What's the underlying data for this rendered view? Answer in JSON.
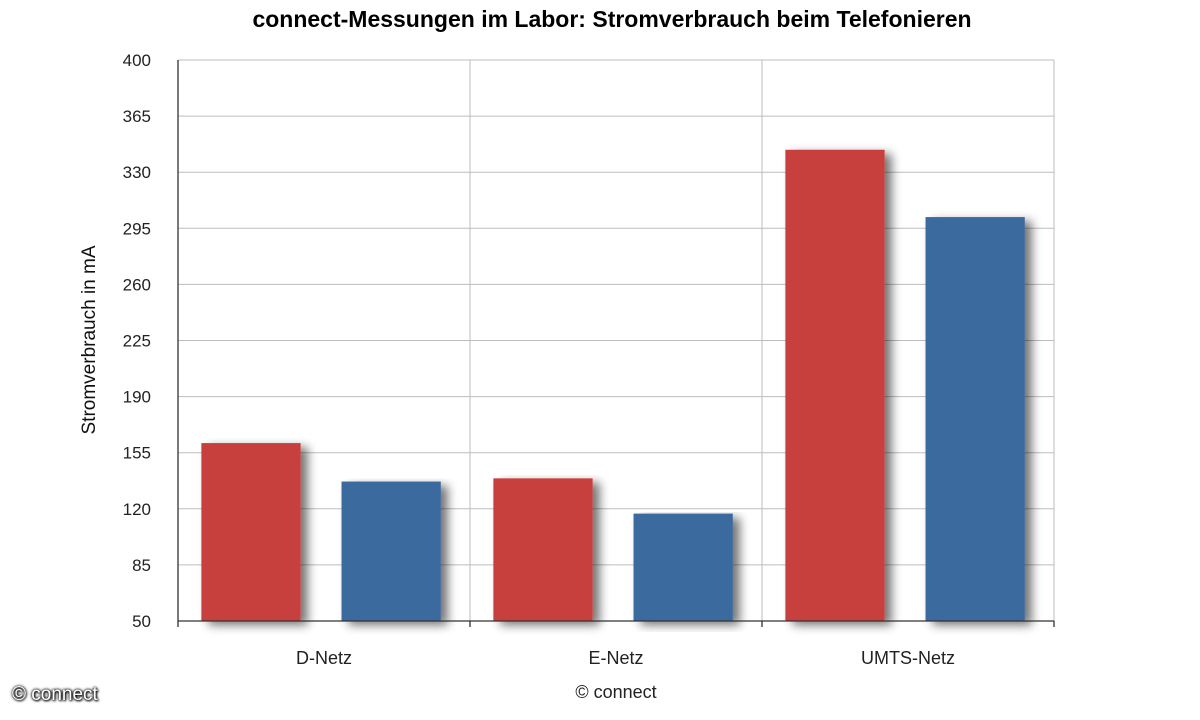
{
  "watermark": "© connect",
  "chart_data": {
    "type": "bar",
    "title": "connect-Messungen im Labor: Stromverbrauch beim Telefonieren",
    "ylabel": "Stromverbrauch in mA",
    "xlabel": "",
    "credit": "© connect",
    "categories": [
      "D-Netz",
      "E-Netz",
      "UMTS-Netz"
    ],
    "series": [
      {
        "color": "#c8403c",
        "values": [
          161,
          139,
          344
        ]
      },
      {
        "color": "#3a6a9e",
        "values": [
          137,
          117,
          302
        ]
      }
    ],
    "ylim": [
      50,
      400
    ],
    "yticks": [
      "50",
      "85",
      "120",
      "155",
      "190",
      "225",
      "260",
      "295",
      "330",
      "365",
      "400"
    ],
    "grid": true,
    "legend": "none"
  }
}
